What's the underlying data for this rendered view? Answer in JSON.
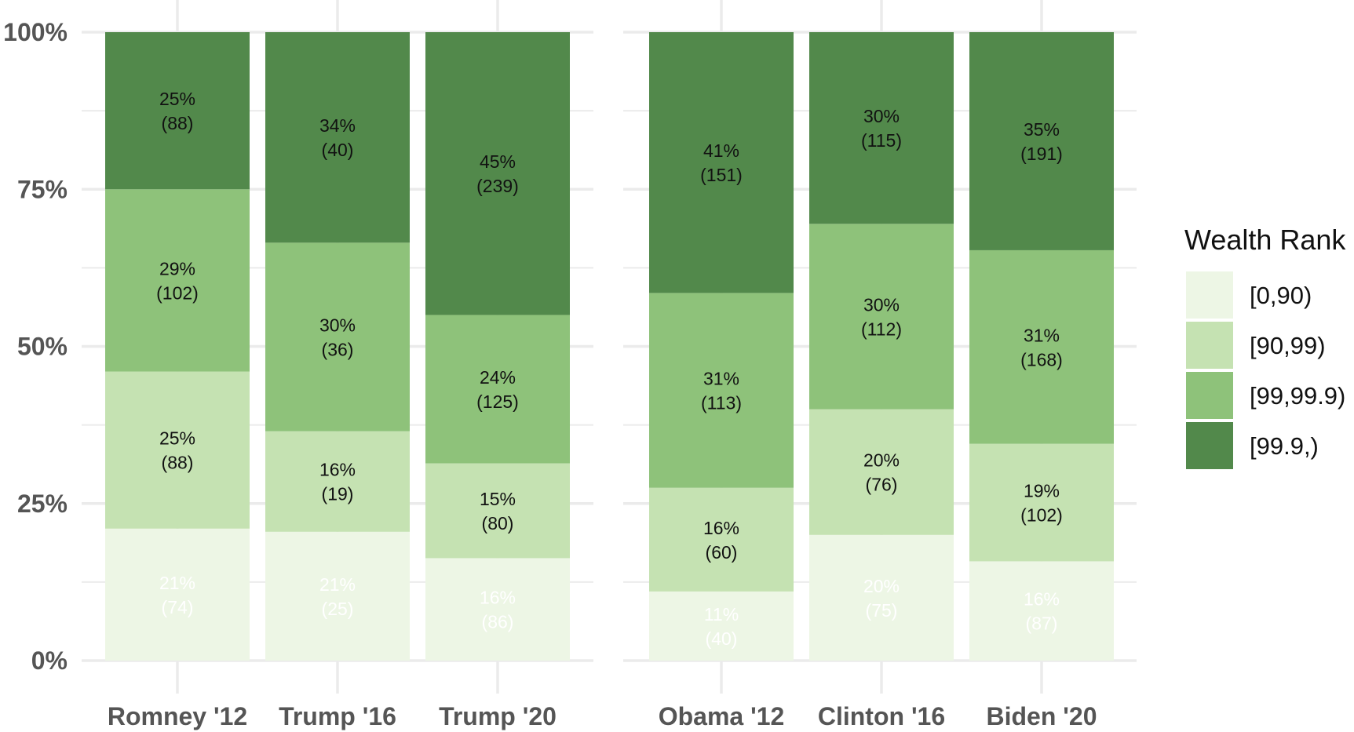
{
  "chart_data": {
    "type": "bar",
    "stacked": "percent",
    "y_ticks": [
      "0%",
      "25%",
      "50%",
      "75%",
      "100%"
    ],
    "ylim": [
      0,
      100
    ],
    "grid": true,
    "legend_position": "right",
    "legend": {
      "title": "Wealth Rank",
      "entries": [
        {
          "label": "[0,90)",
          "color": "#EDF6E5"
        },
        {
          "label": "[90,99)",
          "color": "#C5E2B2"
        },
        {
          "label": "[99,99.9)",
          "color": "#8EC27A"
        },
        {
          "label": "[99.9,)",
          "color": "#52894B"
        }
      ]
    },
    "panels": [
      {
        "categories": [
          "Romney '12",
          "Trump '16",
          "Trump '20"
        ],
        "bars": [
          [
            {
              "pct": 21,
              "pct_label": "21%",
              "count_label": "(74)"
            },
            {
              "pct": 25,
              "pct_label": "25%",
              "count_label": "(88)"
            },
            {
              "pct": 29,
              "pct_label": "29%",
              "count_label": "(102)"
            },
            {
              "pct": 25,
              "pct_label": "25%",
              "count_label": "(88)"
            }
          ],
          [
            {
              "pct": 20.5,
              "pct_label": "21%",
              "count_label": "(25)"
            },
            {
              "pct": 16,
              "pct_label": "16%",
              "count_label": "(19)"
            },
            {
              "pct": 30,
              "pct_label": "30%",
              "count_label": "(36)"
            },
            {
              "pct": 33.5,
              "pct_label": "34%",
              "count_label": "(40)"
            }
          ],
          [
            {
              "pct": 16.3,
              "pct_label": "16%",
              "count_label": "(86)"
            },
            {
              "pct": 15.1,
              "pct_label": "15%",
              "count_label": "(80)"
            },
            {
              "pct": 23.6,
              "pct_label": "24%",
              "count_label": "(125)"
            },
            {
              "pct": 45,
              "pct_label": "45%",
              "count_label": "(239)"
            }
          ]
        ]
      },
      {
        "categories": [
          "Obama '12",
          "Clinton '16",
          "Biden '20"
        ],
        "bars": [
          [
            {
              "pct": 11,
              "pct_label": "11%",
              "count_label": "(40)"
            },
            {
              "pct": 16.5,
              "pct_label": "16%",
              "count_label": "(60)"
            },
            {
              "pct": 31,
              "pct_label": "31%",
              "count_label": "(113)"
            },
            {
              "pct": 41.5,
              "pct_label": "41%",
              "count_label": "(151)"
            }
          ],
          [
            {
              "pct": 20,
              "pct_label": "20%",
              "count_label": "(75)"
            },
            {
              "pct": 20,
              "pct_label": "20%",
              "count_label": "(76)"
            },
            {
              "pct": 29.5,
              "pct_label": "30%",
              "count_label": "(112)"
            },
            {
              "pct": 30.5,
              "pct_label": "30%",
              "count_label": "(115)"
            }
          ],
          [
            {
              "pct": 15.8,
              "pct_label": "16%",
              "count_label": "(87)"
            },
            {
              "pct": 18.7,
              "pct_label": "19%",
              "count_label": "(102)"
            },
            {
              "pct": 30.8,
              "pct_label": "31%",
              "count_label": "(168)"
            },
            {
              "pct": 34.7,
              "pct_label": "35%",
              "count_label": "(191)"
            }
          ]
        ]
      }
    ]
  }
}
